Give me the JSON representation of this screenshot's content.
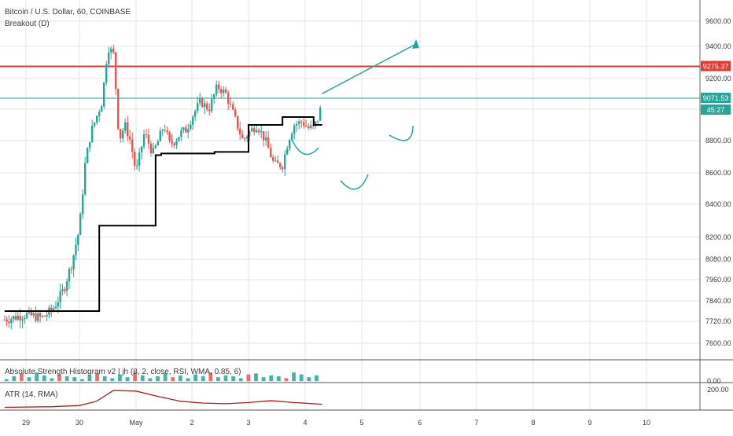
{
  "header": {
    "symbol_title": "Bitcoin / U.S. Dollar, 60, COINBASE",
    "indicator_name": "Breakout (D)"
  },
  "price_axis": {
    "ticks": [
      "9600.00",
      "9400.00",
      "9200.00",
      "9000.00",
      "8800.00",
      "8600.00",
      "8400.00",
      "8200.00",
      "8080.00",
      "7960.00",
      "7840.00",
      "7720.00",
      "7600.00"
    ],
    "badge_high": "9275.37",
    "badge_last": "9071.53",
    "badge_timer": "45:27"
  },
  "time_axis": {
    "ticks": [
      "29",
      "30",
      "May",
      "2",
      "3",
      "4",
      "5",
      "6",
      "7",
      "8",
      "9",
      "10"
    ]
  },
  "histogram_pane": {
    "title": "Absolute Strength Histogram v2 | jh (8, 2, close, RSI, WMA, 0.85, 6)",
    "axis_label": "0.00"
  },
  "atr_pane": {
    "title": "ATR (14, RMA)",
    "axis_label": "200.00"
  },
  "colors": {
    "up": "#26a69a",
    "down": "#ef5350",
    "resistance_line": "#e53935",
    "last_price_line": "#26a69a",
    "breakout_line": "#000000",
    "atr_line": "#b71c1c",
    "grid": "#e6e6e6"
  },
  "chart_data": {
    "type": "candlestick",
    "title": "Bitcoin / U.S. Dollar, 60, COINBASE",
    "xlabel": "",
    "ylabel": "",
    "ylim": [
      7550,
      9680
    ],
    "x_unit": "days from Apr 29 00:00 (approx.)",
    "horizontal_lines": [
      {
        "name": "resistance",
        "value": 9275.37,
        "color": "#e53935"
      },
      {
        "name": "last_price",
        "value": 9071.53,
        "color": "#26a69a"
      }
    ],
    "candle_anchors": [
      [
        -0.4,
        7730
      ],
      [
        0.0,
        7760
      ],
      [
        0.3,
        7740
      ],
      [
        0.5,
        7790
      ],
      [
        0.7,
        7900
      ],
      [
        0.85,
        8050
      ],
      [
        1.0,
        8250
      ],
      [
        1.1,
        8650
      ],
      [
        1.2,
        8850
      ],
      [
        1.3,
        8950
      ],
      [
        1.4,
        9050
      ],
      [
        1.5,
        9400
      ],
      [
        1.6,
        9350
      ],
      [
        1.65,
        9100
      ],
      [
        1.7,
        8800
      ],
      [
        1.8,
        8900
      ],
      [
        1.9,
        8800
      ],
      [
        2.0,
        8600
      ],
      [
        2.15,
        8850
      ],
      [
        2.3,
        8720
      ],
      [
        2.4,
        8800
      ],
      [
        2.5,
        8900
      ],
      [
        2.6,
        8780
      ],
      [
        2.7,
        8800
      ],
      [
        2.8,
        8850
      ],
      [
        2.9,
        8870
      ],
      [
        3.0,
        8950
      ],
      [
        3.15,
        9050
      ],
      [
        3.3,
        9000
      ],
      [
        3.45,
        9150
      ],
      [
        3.6,
        9100
      ],
      [
        3.75,
        8950
      ],
      [
        3.9,
        8800
      ],
      [
        4.0,
        8850
      ],
      [
        4.15,
        8900
      ],
      [
        4.3,
        8800
      ],
      [
        4.45,
        8650
      ],
      [
        4.6,
        8650
      ],
      [
        4.7,
        8800
      ],
      [
        4.8,
        8900
      ],
      [
        4.95,
        8920
      ],
      [
        5.05,
        8880
      ],
      [
        5.15,
        8880
      ],
      [
        5.25,
        8960
      ],
      [
        5.3,
        9071
      ]
    ],
    "breakout_line": [
      [
        -0.4,
        7780
      ],
      [
        1.35,
        7780
      ],
      [
        1.35,
        8270
      ],
      [
        2.35,
        8270
      ],
      [
        2.35,
        8710
      ],
      [
        2.45,
        8710
      ],
      [
        2.45,
        8720
      ],
      [
        3.4,
        8720
      ],
      [
        3.4,
        8730
      ],
      [
        4.0,
        8730
      ],
      [
        4.0,
        8900
      ],
      [
        4.6,
        8900
      ],
      [
        4.6,
        8950
      ],
      [
        5.15,
        8950
      ],
      [
        5.15,
        8900
      ],
      [
        5.3,
        8900
      ]
    ],
    "histogram_bars": [
      0.2,
      0.5,
      0.8,
      0.4,
      0.9,
      0.6,
      0.3,
      0.7,
      0.5,
      0.4,
      0.2,
      0.6,
      0.8,
      0.5,
      0.3,
      0.7,
      0.4,
      0.9,
      0.6,
      0.3,
      0.5,
      0.8,
      0.4,
      0.6,
      0.3,
      0.7,
      0.5,
      0.9,
      0.4,
      0.6,
      0.5,
      0.3,
      0.7,
      0.8,
      0.4,
      0.6,
      0.5,
      0.3,
      0.9,
      0.7,
      0.4,
      0.6
    ],
    "atr": [
      [
        -0.4,
        60
      ],
      [
        0.5,
        65
      ],
      [
        1.0,
        75
      ],
      [
        1.3,
        110
      ],
      [
        1.6,
        200
      ],
      [
        2.0,
        195
      ],
      [
        2.4,
        150
      ],
      [
        2.8,
        110
      ],
      [
        3.2,
        95
      ],
      [
        3.6,
        90
      ],
      [
        4.0,
        100
      ],
      [
        4.4,
        115
      ],
      [
        4.8,
        100
      ],
      [
        5.3,
        85
      ]
    ],
    "annotations": [
      "arrow up-right from last price",
      "curved markers under swing lows"
    ]
  }
}
